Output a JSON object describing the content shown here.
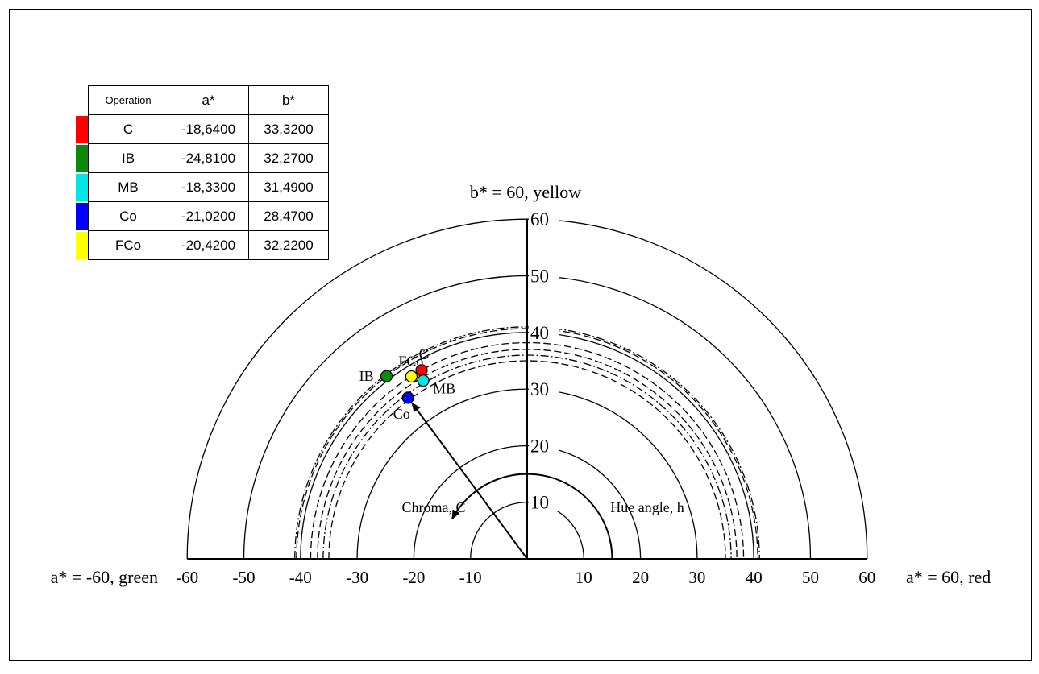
{
  "chart_data": {
    "type": "scatter",
    "title": "",
    "x_axis": {
      "range": [
        -60,
        60
      ],
      "ticks": [
        "-60",
        "-50",
        "-40",
        "-30",
        "-20",
        "-10",
        "10",
        "20",
        "30",
        "40",
        "50",
        "60"
      ],
      "left_label": "a* = -60, green",
      "right_label": "a* = 60, red"
    },
    "y_axis": {
      "range": [
        0,
        60
      ],
      "ticks": [
        "10",
        "20",
        "30",
        "40",
        "50",
        "60"
      ],
      "top_label": "b* = 60, yellow"
    },
    "annotations": {
      "chroma": "Chroma, C",
      "hue": "Hue angle, h"
    },
    "legend": {
      "placement": "top-left",
      "headers": [
        "Operation",
        "a*",
        "b*"
      ],
      "rows": [
        {
          "operation": "C",
          "a": "-18,6400",
          "b": "33,3200",
          "color": "#ff0000"
        },
        {
          "operation": "IB",
          "a": "-24,8100",
          "b": "32,2700",
          "color": "#0a8a0a"
        },
        {
          "operation": "MB",
          "a": "-18,3300",
          "b": "31,4900",
          "color": "#00e5e5"
        },
        {
          "operation": "Co",
          "a": "-21,0200",
          "b": "28,4700",
          "color": "#0000ff"
        },
        {
          "operation": "FCo",
          "a": "-20,4200",
          "b": "32,2200",
          "color": "#ffff00"
        }
      ]
    },
    "points": [
      {
        "name": "C",
        "a": -18.64,
        "b": 33.32,
        "color": "#ff0000"
      },
      {
        "name": "IB",
        "a": -24.81,
        "b": 32.27,
        "color": "#0a8a0a"
      },
      {
        "name": "MB",
        "a": -18.33,
        "b": 31.49,
        "color": "#00e5e5"
      },
      {
        "name": "Co",
        "a": -21.02,
        "b": 28.47,
        "color": "#0000ff"
      },
      {
        "name": "FCo",
        "a": -20.42,
        "b": 32.22,
        "color": "#ffff00"
      }
    ],
    "chroma_rings": [
      10,
      20,
      30,
      40,
      50,
      60
    ],
    "dashed_rings": [
      35.0,
      37.0,
      38.2,
      40.7
    ],
    "dashdot_rings": [
      36.0,
      41.0
    ],
    "hue_arc_radius": 15
  }
}
